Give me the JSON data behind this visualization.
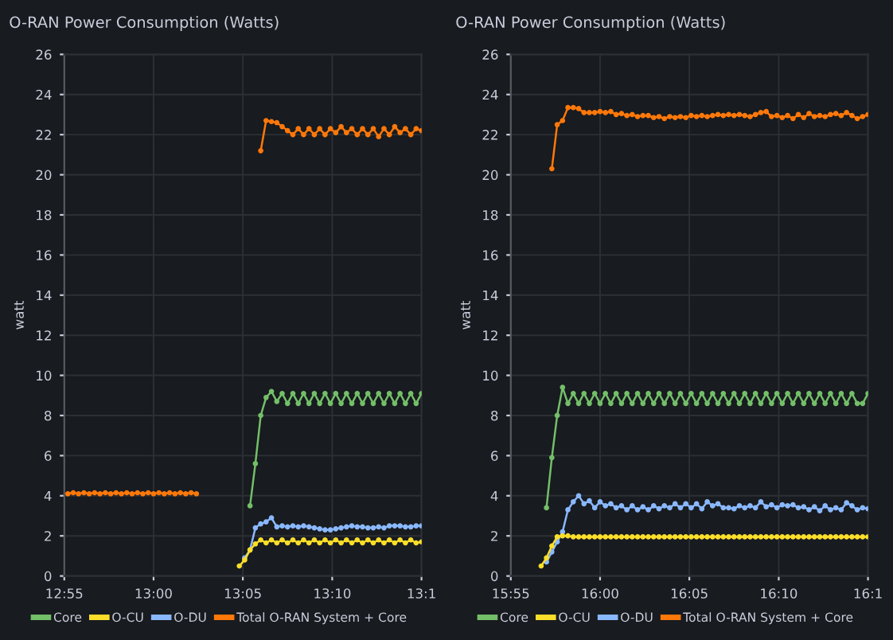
{
  "chart_data": [
    {
      "type": "line",
      "title": "O-RAN Power Consumption (Watts)",
      "ylabel": "watt",
      "xlim": [
        12.9167,
        13.25
      ],
      "xticks": [
        {
          "value": 12.9167,
          "label": "12:55"
        },
        {
          "value": 13.0,
          "label": "13:00"
        },
        {
          "value": 13.0833,
          "label": "13:05"
        },
        {
          "value": 13.1667,
          "label": "13:10"
        },
        {
          "value": 13.25,
          "label": "13:1"
        }
      ],
      "ylim": [
        0,
        26
      ],
      "yticks": [
        0,
        2,
        4,
        6,
        8,
        10,
        12,
        14,
        16,
        18,
        20,
        22,
        24,
        26
      ],
      "grid": true,
      "legend": "bottom",
      "marker": "circle",
      "line_style": "solid",
      "x": [
        12.92,
        12.925,
        12.93,
        12.935,
        12.94,
        12.945,
        12.95,
        12.955,
        12.96,
        12.965,
        12.97,
        12.975,
        12.98,
        12.985,
        12.99,
        12.995,
        13.0,
        13.005,
        13.01,
        13.015,
        13.02,
        13.025,
        13.03,
        13.035,
        13.04,
        13.045,
        13.05,
        13.055,
        13.06,
        13.065,
        13.07,
        13.075,
        13.08,
        13.085,
        13.09,
        13.095,
        13.1,
        13.105,
        13.11,
        13.115,
        13.12,
        13.125,
        13.13,
        13.135,
        13.14,
        13.145,
        13.15,
        13.155,
        13.16,
        13.165,
        13.17,
        13.175,
        13.18,
        13.185,
        13.19,
        13.195,
        13.2,
        13.205,
        13.21,
        13.215,
        13.22,
        13.225,
        13.23,
        13.235,
        13.24,
        13.245,
        13.25
      ],
      "series": [
        {
          "name": "Core",
          "color": "#73bf69",
          "values": [
            null,
            null,
            null,
            null,
            null,
            null,
            null,
            null,
            null,
            null,
            null,
            null,
            null,
            null,
            null,
            null,
            null,
            null,
            null,
            null,
            null,
            null,
            null,
            null,
            null,
            null,
            null,
            null,
            null,
            null,
            null,
            null,
            null,
            null,
            3.5,
            5.6,
            8.0,
            8.9,
            9.2,
            8.7,
            9.1,
            8.6,
            9.1,
            8.6,
            9.1,
            8.6,
            9.1,
            8.6,
            9.1,
            8.6,
            9.1,
            8.6,
            9.1,
            8.6,
            9.1,
            8.6,
            9.1,
            8.6,
            9.1,
            8.6,
            9.1,
            8.6,
            9.1,
            8.6,
            9.1,
            8.6,
            9.1
          ]
        },
        {
          "name": "O-CU",
          "color": "#fade2a",
          "values": [
            null,
            null,
            null,
            null,
            null,
            null,
            null,
            null,
            null,
            null,
            null,
            null,
            null,
            null,
            null,
            null,
            null,
            null,
            null,
            null,
            null,
            null,
            null,
            null,
            null,
            null,
            null,
            null,
            null,
            null,
            null,
            null,
            0.5,
            0.8,
            1.3,
            1.6,
            1.8,
            1.65,
            1.8,
            1.65,
            1.8,
            1.65,
            1.8,
            1.65,
            1.8,
            1.65,
            1.8,
            1.65,
            1.8,
            1.65,
            1.8,
            1.65,
            1.8,
            1.65,
            1.8,
            1.65,
            1.8,
            1.65,
            1.8,
            1.65,
            1.8,
            1.65,
            1.8,
            1.65,
            1.8,
            1.65,
            1.7
          ]
        },
        {
          "name": "O-DU",
          "color": "#8ab8ff",
          "values": [
            null,
            null,
            null,
            null,
            null,
            null,
            null,
            null,
            null,
            null,
            null,
            null,
            null,
            null,
            null,
            null,
            null,
            null,
            null,
            null,
            null,
            null,
            null,
            null,
            null,
            null,
            null,
            null,
            null,
            null,
            null,
            null,
            null,
            0.9,
            1.3,
            2.4,
            2.6,
            2.7,
            2.9,
            2.45,
            2.5,
            2.45,
            2.5,
            2.45,
            2.5,
            2.45,
            2.4,
            2.35,
            2.3,
            2.3,
            2.35,
            2.4,
            2.45,
            2.5,
            2.45,
            2.45,
            2.4,
            2.4,
            2.45,
            2.4,
            2.5,
            2.5,
            2.5,
            2.45,
            2.45,
            2.5,
            2.5
          ]
        },
        {
          "name": "Total O-RAN System + Core",
          "color": "#ff780a",
          "values": [
            4.1,
            4.15,
            4.1,
            4.15,
            4.1,
            4.15,
            4.1,
            4.15,
            4.1,
            4.15,
            4.1,
            4.15,
            4.1,
            4.15,
            4.1,
            4.15,
            4.1,
            4.15,
            4.1,
            4.15,
            4.1,
            4.15,
            4.1,
            4.15,
            4.1,
            null,
            null,
            null,
            null,
            null,
            null,
            null,
            null,
            null,
            null,
            null,
            21.2,
            22.7,
            22.65,
            22.6,
            22.4,
            22.2,
            22.0,
            22.3,
            22.0,
            22.3,
            22.0,
            22.3,
            22.0,
            22.3,
            22.1,
            22.4,
            22.1,
            22.3,
            22.0,
            22.3,
            22.0,
            22.3,
            21.9,
            22.3,
            22.0,
            22.4,
            22.1,
            22.3,
            22.0,
            22.3,
            22.2
          ]
        }
      ]
    },
    {
      "type": "line",
      "title": "O-RAN Power Consumption (Watts)",
      "ylabel": "watt",
      "xlim": [
        15.9167,
        16.25
      ],
      "xticks": [
        {
          "value": 15.9167,
          "label": "15:55"
        },
        {
          "value": 16.0,
          "label": "16:00"
        },
        {
          "value": 16.0833,
          "label": "16:05"
        },
        {
          "value": 16.1667,
          "label": "16:10"
        },
        {
          "value": 16.25,
          "label": "16:1"
        }
      ],
      "ylim": [
        0,
        26
      ],
      "yticks": [
        0,
        2,
        4,
        6,
        8,
        10,
        12,
        14,
        16,
        18,
        20,
        22,
        24,
        26
      ],
      "grid": true,
      "legend": "bottom",
      "marker": "circle",
      "line_style": "solid",
      "x": [
        15.945,
        15.95,
        15.955,
        15.96,
        15.965,
        15.97,
        15.975,
        15.98,
        15.985,
        15.99,
        15.995,
        16.0,
        16.005,
        16.01,
        16.015,
        16.02,
        16.025,
        16.03,
        16.035,
        16.04,
        16.045,
        16.05,
        16.055,
        16.06,
        16.065,
        16.07,
        16.075,
        16.08,
        16.085,
        16.09,
        16.095,
        16.1,
        16.105,
        16.11,
        16.115,
        16.12,
        16.125,
        16.13,
        16.135,
        16.14,
        16.145,
        16.15,
        16.155,
        16.16,
        16.165,
        16.17,
        16.175,
        16.18,
        16.185,
        16.19,
        16.195,
        16.2,
        16.205,
        16.21,
        16.215,
        16.22,
        16.225,
        16.23,
        16.235,
        16.24,
        16.245,
        16.25
      ],
      "series": [
        {
          "name": "Core",
          "color": "#73bf69",
          "values": [
            null,
            3.4,
            5.9,
            8.0,
            9.4,
            8.6,
            9.1,
            8.6,
            9.1,
            8.6,
            9.1,
            8.6,
            9.1,
            8.6,
            9.1,
            8.6,
            9.1,
            8.6,
            9.1,
            8.6,
            9.1,
            8.6,
            9.1,
            8.6,
            9.1,
            8.6,
            9.1,
            8.6,
            9.1,
            8.6,
            9.1,
            8.6,
            9.1,
            8.6,
            9.1,
            8.6,
            9.1,
            8.6,
            9.1,
            8.6,
            9.1,
            8.6,
            9.1,
            8.6,
            9.1,
            8.6,
            9.1,
            8.6,
            9.1,
            8.6,
            9.1,
            8.6,
            9.1,
            8.6,
            9.1,
            8.6,
            9.1,
            8.6,
            9.1,
            8.6,
            8.6,
            9.1
          ]
        },
        {
          "name": "O-CU",
          "color": "#fade2a",
          "values": [
            0.5,
            0.9,
            1.5,
            1.95,
            2.0,
            2.0,
            1.95,
            1.95,
            1.95,
            1.95,
            1.95,
            1.95,
            1.95,
            1.95,
            1.95,
            1.95,
            1.95,
            1.95,
            1.95,
            1.95,
            1.95,
            1.95,
            1.95,
            1.95,
            1.95,
            1.95,
            1.95,
            1.95,
            1.95,
            1.95,
            1.95,
            1.95,
            1.95,
            1.95,
            1.95,
            1.95,
            1.95,
            1.95,
            1.95,
            1.95,
            1.95,
            1.95,
            1.95,
            1.95,
            1.95,
            1.95,
            1.95,
            1.95,
            1.95,
            1.95,
            1.95,
            1.95,
            1.95,
            1.95,
            1.95,
            1.95,
            1.95,
            1.95,
            1.95,
            1.95,
            1.95,
            1.95
          ]
        },
        {
          "name": "O-DU",
          "color": "#8ab8ff",
          "values": [
            null,
            0.7,
            1.2,
            1.7,
            2.2,
            3.3,
            3.7,
            4.0,
            3.6,
            3.75,
            3.4,
            3.7,
            3.5,
            3.6,
            3.4,
            3.5,
            3.3,
            3.5,
            3.3,
            3.45,
            3.3,
            3.5,
            3.35,
            3.5,
            3.4,
            3.6,
            3.4,
            3.6,
            3.4,
            3.6,
            3.35,
            3.7,
            3.5,
            3.6,
            3.4,
            3.4,
            3.35,
            3.5,
            3.4,
            3.5,
            3.4,
            3.7,
            3.45,
            3.55,
            3.4,
            3.55,
            3.5,
            3.55,
            3.4,
            3.45,
            3.3,
            3.45,
            3.25,
            3.5,
            3.3,
            3.4,
            3.3,
            3.65,
            3.5,
            3.3,
            3.4,
            3.35
          ]
        },
        {
          "name": "Total O-RAN System + Core",
          "color": "#ff780a",
          "values": [
            null,
            null,
            20.3,
            22.5,
            22.7,
            23.35,
            23.35,
            23.3,
            23.1,
            23.1,
            23.1,
            23.15,
            23.1,
            23.15,
            23.0,
            23.05,
            22.95,
            23.0,
            22.9,
            22.95,
            22.95,
            22.85,
            22.9,
            22.8,
            22.9,
            22.85,
            22.9,
            22.85,
            22.95,
            22.9,
            22.95,
            22.9,
            22.95,
            23.0,
            22.95,
            23.0,
            22.95,
            23.0,
            22.95,
            22.9,
            23.0,
            23.1,
            23.15,
            22.9,
            22.95,
            22.85,
            22.95,
            22.8,
            23.0,
            22.85,
            23.05,
            22.9,
            22.95,
            22.9,
            23.0,
            23.05,
            22.95,
            23.1,
            22.95,
            22.8,
            22.9,
            23.0
          ]
        }
      ]
    }
  ]
}
